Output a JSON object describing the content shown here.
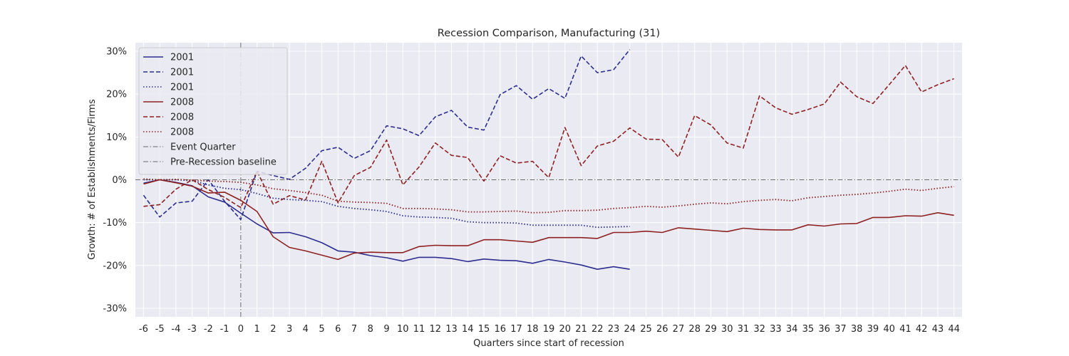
{
  "chart_data": {
    "type": "line",
    "title": "Recession Comparison, Manufacturing (31)",
    "xlabel": "Quarters since start of recession",
    "ylabel": "Growth: # of Establishments/Firms",
    "xlim": [
      -6.5,
      44.5
    ],
    "ylim": [
      -32,
      32
    ],
    "x_ticks": [
      -6,
      -5,
      -4,
      -3,
      -2,
      -1,
      0,
      1,
      2,
      3,
      4,
      5,
      6,
      7,
      8,
      9,
      10,
      11,
      12,
      13,
      14,
      15,
      16,
      17,
      18,
      19,
      20,
      21,
      22,
      23,
      24,
      25,
      26,
      27,
      28,
      29,
      30,
      31,
      32,
      33,
      34,
      35,
      36,
      37,
      38,
      39,
      40,
      41,
      42,
      43,
      44
    ],
    "y_ticks": [
      -30,
      -20,
      -10,
      0,
      10,
      20,
      30
    ],
    "y_tick_labels": [
      "-30%",
      "-20%",
      "-10%",
      "0%",
      "10%",
      "20%",
      "30%"
    ],
    "grid": true,
    "legend_position": "top-left",
    "series": [
      {
        "name": "2001",
        "color": "#2c2e8f",
        "style": "solid",
        "x_start": -6,
        "values": [
          -0.8,
          0,
          -0.6,
          -1.4,
          -4,
          -5.2,
          -7.8,
          -10.3,
          -12.4,
          -12.3,
          -13.3,
          -14.7,
          -16.6,
          -16.9,
          -17.7,
          -18.2,
          -19,
          -18.1,
          -18.1,
          -18.4,
          -19.1,
          -18.5,
          -18.8,
          -18.9,
          -19.5,
          -18.6,
          -19.2,
          -19.9,
          -20.9,
          -20.3,
          -20.9
        ]
      },
      {
        "name": "2001",
        "color": "#2c2e8f",
        "style": "dashed",
        "x_start": -6,
        "values": [
          -3.6,
          -8.7,
          -5.4,
          -5,
          0,
          -5,
          -9.3,
          2,
          1,
          0.1,
          2.7,
          6.8,
          7.6,
          5,
          6.8,
          12.6,
          11.9,
          10.3,
          14.7,
          16.2,
          12.3,
          11.6,
          19.9,
          22,
          18.8,
          21.3,
          19,
          28.9,
          25,
          25.7,
          30.4
        ]
      },
      {
        "name": "2001",
        "color": "#2c2e8f",
        "style": "dotted",
        "x_start": -6,
        "values": [
          0,
          0,
          0,
          -0.2,
          -1.2,
          -2,
          -2.3,
          -3.2,
          -4.3,
          -4.6,
          -4.8,
          -5.1,
          -6.2,
          -6.7,
          -7,
          -7.4,
          -8.4,
          -8.7,
          -8.8,
          -9,
          -9.8,
          -10,
          -10,
          -10.1,
          -10.6,
          -10.6,
          -10.6,
          -10.6,
          -11.1,
          -11,
          -10.9
        ]
      },
      {
        "name": "2008",
        "color": "#8e2121",
        "style": "solid",
        "x_start": -6,
        "values": [
          -1,
          0,
          -0.7,
          -1.5,
          -3.1,
          -2.9,
          -4.8,
          -7.4,
          -13.3,
          -15.8,
          -16.6,
          -17.6,
          -18.6,
          -17.1,
          -16.9,
          -17,
          -17,
          -15.6,
          -15.3,
          -15.4,
          -15.4,
          -14,
          -14,
          -14.3,
          -14.6,
          -13.5,
          -13.5,
          -13.5,
          -13.7,
          -12.3,
          -12.3,
          -12,
          -12.3,
          -11.2,
          -11.5,
          -11.8,
          -12.1,
          -11.3,
          -11.6,
          -11.7,
          -11.7,
          -10.5,
          -10.8,
          -10.3,
          -10.2,
          -8.8,
          -8.8,
          -8.4,
          -8.5,
          -7.7,
          -8.3
        ]
      },
      {
        "name": "2008",
        "color": "#8e2121",
        "style": "dashed",
        "x_start": -6,
        "values": [
          -6.2,
          -5.8,
          -2.2,
          0,
          -2.3,
          -4.1,
          -6.5,
          2,
          -5.7,
          -3.7,
          -4.7,
          4.3,
          -5.4,
          1,
          2.9,
          9.3,
          -1.2,
          3,
          8.6,
          5.7,
          5.2,
          -0.3,
          5.6,
          3.9,
          4.3,
          0.5,
          12.2,
          3.3,
          7.9,
          9,
          12.1,
          9.5,
          9.4,
          5.3,
          15,
          12.8,
          8.6,
          7.4,
          19.6,
          16.8,
          15.3,
          16.4,
          17.7,
          22.8,
          19.4,
          17.8,
          22.2,
          26.7,
          20.5,
          22.2,
          23.6
        ]
      },
      {
        "name": "2008",
        "color": "#8e2121",
        "style": "dotted",
        "x_start": -6,
        "values": [
          0.2,
          0,
          0.1,
          -0.1,
          -0.3,
          -0.4,
          -0.6,
          -1.2,
          -2.1,
          -2.5,
          -3,
          -3.6,
          -5,
          -5.2,
          -5.3,
          -5.5,
          -6.7,
          -6.7,
          -6.8,
          -7,
          -7.5,
          -7.5,
          -7.4,
          -7.3,
          -7.7,
          -7.6,
          -7.2,
          -7.2,
          -7.1,
          -6.7,
          -6.5,
          -6.2,
          -6.4,
          -6.1,
          -5.7,
          -5.4,
          -5.6,
          -5.1,
          -4.8,
          -4.6,
          -4.9,
          -4.2,
          -3.9,
          -3.6,
          -3.4,
          -3.1,
          -2.7,
          -2.2,
          -2.5,
          -2,
          -1.6
        ]
      }
    ],
    "reference_lines": [
      {
        "name": "Event Quarter",
        "orientation": "vertical",
        "value": 0,
        "color": "#6b6b6b",
        "style": "dashdot"
      },
      {
        "name": "Pre-Recession baseline",
        "orientation": "horizontal",
        "value": 0,
        "color": "#6b6b6b",
        "style": "dashdot"
      }
    ]
  }
}
